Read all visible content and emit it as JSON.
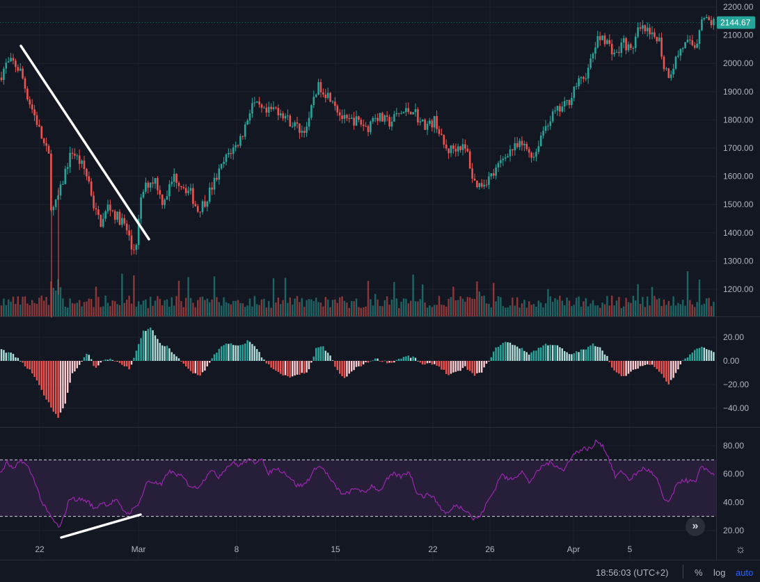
{
  "chart_data": [
    {
      "type": "candlestick",
      "pane": "price",
      "y_axis_ticks": [
        "2200.00",
        "2100.00",
        "2000.00",
        "1900.00",
        "1800.00",
        "1700.00",
        "1600.00",
        "1500.00",
        "1400.00",
        "1300.00",
        "1200.00"
      ],
      "ylim": [
        1110,
        2210
      ],
      "last_price": "2144.67",
      "volume_overlay": true,
      "anchors_close": [
        [
          0,
          1950
        ],
        [
          8,
          1995
        ],
        [
          18,
          2005
        ],
        [
          30,
          1970
        ],
        [
          40,
          1880
        ],
        [
          52,
          1800
        ],
        [
          62,
          1720
        ],
        [
          70,
          1670
        ],
        [
          74,
          1470
        ],
        [
          80,
          1500
        ],
        [
          88,
          1560
        ],
        [
          96,
          1640
        ],
        [
          104,
          1690
        ],
        [
          112,
          1660
        ],
        [
          120,
          1630
        ],
        [
          128,
          1580
        ],
        [
          136,
          1480
        ],
        [
          146,
          1430
        ],
        [
          156,
          1500
        ],
        [
          166,
          1460
        ],
        [
          176,
          1440
        ],
        [
          184,
          1400
        ],
        [
          190,
          1330
        ],
        [
          196,
          1370
        ],
        [
          204,
          1540
        ],
        [
          214,
          1580
        ],
        [
          224,
          1590
        ],
        [
          232,
          1510
        ],
        [
          240,
          1540
        ],
        [
          250,
          1600
        ],
        [
          262,
          1570
        ],
        [
          274,
          1540
        ],
        [
          284,
          1480
        ],
        [
          294,
          1510
        ],
        [
          304,
          1560
        ],
        [
          316,
          1620
        ],
        [
          328,
          1680
        ],
        [
          340,
          1710
        ],
        [
          350,
          1760
        ],
        [
          362,
          1860
        ],
        [
          372,
          1840
        ],
        [
          382,
          1820
        ],
        [
          394,
          1840
        ],
        [
          404,
          1830
        ],
        [
          414,
          1800
        ],
        [
          424,
          1780
        ],
        [
          434,
          1760
        ],
        [
          444,
          1790
        ],
        [
          452,
          1900
        ],
        [
          460,
          1920
        ],
        [
          470,
          1890
        ],
        [
          478,
          1880
        ],
        [
          488,
          1820
        ],
        [
          498,
          1790
        ],
        [
          508,
          1800
        ],
        [
          518,
          1790
        ],
        [
          528,
          1770
        ],
        [
          538,
          1820
        ],
        [
          550,
          1800
        ],
        [
          560,
          1790
        ],
        [
          572,
          1820
        ],
        [
          584,
          1830
        ],
        [
          594,
          1840
        ],
        [
          604,
          1790
        ],
        [
          616,
          1780
        ],
        [
          626,
          1800
        ],
        [
          634,
          1730
        ],
        [
          642,
          1690
        ],
        [
          652,
          1700
        ],
        [
          662,
          1710
        ],
        [
          672,
          1680
        ],
        [
          680,
          1580
        ],
        [
          690,
          1570
        ],
        [
          700,
          1590
        ],
        [
          710,
          1610
        ],
        [
          720,
          1650
        ],
        [
          730,
          1690
        ],
        [
          740,
          1700
        ],
        [
          750,
          1710
        ],
        [
          760,
          1690
        ],
        [
          768,
          1670
        ],
        [
          776,
          1740
        ],
        [
          786,
          1790
        ],
        [
          796,
          1820
        ],
        [
          806,
          1840
        ],
        [
          816,
          1860
        ],
        [
          826,
          1920
        ],
        [
          836,
          1940
        ],
        [
          846,
          1980
        ],
        [
          856,
          2070
        ],
        [
          866,
          2100
        ],
        [
          876,
          2060
        ],
        [
          886,
          2030
        ],
        [
          896,
          2080
        ],
        [
          906,
          2040
        ],
        [
          916,
          2110
        ],
        [
          926,
          2120
        ],
        [
          936,
          2090
        ],
        [
          946,
          2100
        ],
        [
          954,
          1990
        ],
        [
          962,
          1960
        ],
        [
          970,
          2010
        ],
        [
          980,
          2060
        ],
        [
          990,
          2070
        ],
        [
          1000,
          2060
        ],
        [
          1008,
          2170
        ],
        [
          1016,
          2150
        ],
        [
          1024,
          2145
        ]
      ]
    },
    {
      "type": "bar",
      "pane": "histogram-oscillator",
      "y_axis_ticks": [
        "20.00",
        "0.00",
        "−20.00",
        "−40.00"
      ],
      "ylim": [
        -50,
        30
      ],
      "anchors": [
        [
          0,
          10
        ],
        [
          20,
          5
        ],
        [
          32,
          -2
        ],
        [
          46,
          -10
        ],
        [
          60,
          -25
        ],
        [
          72,
          -38
        ],
        [
          84,
          -48
        ],
        [
          94,
          -35
        ],
        [
          104,
          -10
        ],
        [
          116,
          -3
        ],
        [
          126,
          8
        ],
        [
          136,
          -6
        ],
        [
          148,
          0
        ],
        [
          160,
          2
        ],
        [
          172,
          -2
        ],
        [
          186,
          -7
        ],
        [
          196,
          8
        ],
        [
          206,
          25
        ],
        [
          218,
          28
        ],
        [
          230,
          14
        ],
        [
          240,
          12
        ],
        [
          252,
          5
        ],
        [
          262,
          -2
        ],
        [
          276,
          -10
        ],
        [
          288,
          -12
        ],
        [
          298,
          -5
        ],
        [
          308,
          5
        ],
        [
          320,
          14
        ],
        [
          332,
          14
        ],
        [
          344,
          12
        ],
        [
          356,
          17
        ],
        [
          368,
          12
        ],
        [
          378,
          1
        ],
        [
          390,
          -5
        ],
        [
          404,
          -12
        ],
        [
          418,
          -14
        ],
        [
          430,
          -12
        ],
        [
          444,
          -8
        ],
        [
          454,
          10
        ],
        [
          464,
          12
        ],
        [
          474,
          5
        ],
        [
          484,
          -8
        ],
        [
          494,
          -15
        ],
        [
          504,
          -10
        ],
        [
          514,
          -5
        ],
        [
          526,
          -2
        ],
        [
          538,
          2
        ],
        [
          550,
          0
        ],
        [
          562,
          -2
        ],
        [
          574,
          2
        ],
        [
          586,
          4
        ],
        [
          598,
          2
        ],
        [
          608,
          -4
        ],
        [
          620,
          -2
        ],
        [
          632,
          -5
        ],
        [
          644,
          -12
        ],
        [
          656,
          -10
        ],
        [
          668,
          -5
        ],
        [
          680,
          -12
        ],
        [
          692,
          -10
        ],
        [
          702,
          0
        ],
        [
          714,
          12
        ],
        [
          726,
          16
        ],
        [
          738,
          14
        ],
        [
          750,
          10
        ],
        [
          760,
          6
        ],
        [
          772,
          10
        ],
        [
          784,
          14
        ],
        [
          796,
          14
        ],
        [
          808,
          10
        ],
        [
          818,
          5
        ],
        [
          830,
          8
        ],
        [
          842,
          10
        ],
        [
          852,
          14
        ],
        [
          862,
          12
        ],
        [
          872,
          4
        ],
        [
          882,
          -8
        ],
        [
          894,
          -14
        ],
        [
          906,
          -10
        ],
        [
          918,
          -5
        ],
        [
          930,
          -3
        ],
        [
          940,
          -4
        ],
        [
          950,
          -10
        ],
        [
          960,
          -20
        ],
        [
          970,
          -12
        ],
        [
          980,
          0
        ],
        [
          992,
          5
        ],
        [
          1004,
          12
        ],
        [
          1016,
          10
        ],
        [
          1026,
          8
        ]
      ]
    },
    {
      "type": "line",
      "pane": "rsi",
      "y_axis_ticks": [
        "80.00",
        "60.00",
        "40.00",
        "20.00"
      ],
      "ylim": [
        16,
        88
      ],
      "band": [
        30,
        70
      ],
      "color": "#9c27b0",
      "anchors": [
        [
          0,
          60
        ],
        [
          10,
          68
        ],
        [
          20,
          63
        ],
        [
          30,
          70
        ],
        [
          40,
          65
        ],
        [
          50,
          55
        ],
        [
          60,
          40
        ],
        [
          70,
          32
        ],
        [
          80,
          25
        ],
        [
          86,
          22
        ],
        [
          92,
          30
        ],
        [
          100,
          43
        ],
        [
          108,
          42
        ],
        [
          118,
          42
        ],
        [
          128,
          40
        ],
        [
          136,
          35
        ],
        [
          146,
          40
        ],
        [
          156,
          38
        ],
        [
          166,
          42
        ],
        [
          176,
          35
        ],
        [
          184,
          32
        ],
        [
          194,
          36
        ],
        [
          202,
          42
        ],
        [
          212,
          55
        ],
        [
          222,
          54
        ],
        [
          232,
          52
        ],
        [
          242,
          62
        ],
        [
          252,
          60
        ],
        [
          262,
          58
        ],
        [
          272,
          52
        ],
        [
          282,
          50
        ],
        [
          292,
          55
        ],
        [
          302,
          63
        ],
        [
          314,
          58
        ],
        [
          324,
          64
        ],
        [
          334,
          68
        ],
        [
          344,
          66
        ],
        [
          356,
          70
        ],
        [
          366,
          68
        ],
        [
          376,
          72
        ],
        [
          384,
          60
        ],
        [
          396,
          64
        ],
        [
          406,
          62
        ],
        [
          416,
          58
        ],
        [
          426,
          52
        ],
        [
          436,
          52
        ],
        [
          446,
          58
        ],
        [
          456,
          66
        ],
        [
          466,
          63
        ],
        [
          476,
          55
        ],
        [
          484,
          50
        ],
        [
          494,
          45
        ],
        [
          504,
          48
        ],
        [
          514,
          50
        ],
        [
          524,
          46
        ],
        [
          534,
          52
        ],
        [
          546,
          48
        ],
        [
          556,
          56
        ],
        [
          566,
          60
        ],
        [
          576,
          58
        ],
        [
          588,
          62
        ],
        [
          598,
          48
        ],
        [
          608,
          44
        ],
        [
          618,
          46
        ],
        [
          628,
          40
        ],
        [
          636,
          34
        ],
        [
          644,
          32
        ],
        [
          654,
          38
        ],
        [
          664,
          36
        ],
        [
          672,
          34
        ],
        [
          680,
          28
        ],
        [
          690,
          30
        ],
        [
          700,
          40
        ],
        [
          710,
          48
        ],
        [
          720,
          60
        ],
        [
          730,
          56
        ],
        [
          740,
          58
        ],
        [
          750,
          62
        ],
        [
          760,
          54
        ],
        [
          770,
          60
        ],
        [
          780,
          66
        ],
        [
          790,
          68
        ],
        [
          800,
          66
        ],
        [
          810,
          62
        ],
        [
          820,
          72
        ],
        [
          830,
          76
        ],
        [
          840,
          78
        ],
        [
          850,
          78
        ],
        [
          858,
          84
        ],
        [
          866,
          80
        ],
        [
          874,
          72
        ],
        [
          884,
          58
        ],
        [
          894,
          62
        ],
        [
          904,
          56
        ],
        [
          914,
          60
        ],
        [
          924,
          64
        ],
        [
          934,
          62
        ],
        [
          944,
          56
        ],
        [
          954,
          42
        ],
        [
          962,
          40
        ],
        [
          970,
          50
        ],
        [
          980,
          56
        ],
        [
          990,
          55
        ],
        [
          1000,
          54
        ],
        [
          1008,
          66
        ],
        [
          1018,
          62
        ],
        [
          1026,
          60
        ]
      ]
    }
  ],
  "x_axis": {
    "ticks": [
      {
        "label": "22",
        "x": 57
      },
      {
        "label": "Mar",
        "x": 199
      },
      {
        "label": "8",
        "x": 340
      },
      {
        "label": "15",
        "x": 482
      },
      {
        "label": "22",
        "x": 622
      },
      {
        "label": "26",
        "x": 704
      },
      {
        "label": "Apr",
        "x": 824
      },
      {
        "label": "5",
        "x": 905
      }
    ]
  },
  "trendlines": [
    {
      "pane": "price",
      "from": [
        30,
        66
      ],
      "to": [
        214,
        344
      ],
      "color": "#ffffff"
    },
    {
      "pane": "rsi",
      "from": [
        88,
        773
      ],
      "to": [
        202,
        740
      ],
      "color": "#ffffff"
    }
  ],
  "colors": {
    "up": "#26a69a",
    "down": "#ef5350",
    "up_light": "#b2dfdb",
    "down_light": "#ffcdd2",
    "background": "#131722",
    "grid": "#1e222d",
    "rsi_line": "#9c27b0",
    "rsi_band": "#2a1f3d",
    "price_label_bg": "#26a69a"
  },
  "bottom_bar": {
    "time": "18:56:03 (UTC+2)",
    "percent": "%",
    "log": "log",
    "auto": "auto"
  },
  "icons": {
    "scroll": "double-chevron-right-icon",
    "settings": "gear-icon"
  }
}
